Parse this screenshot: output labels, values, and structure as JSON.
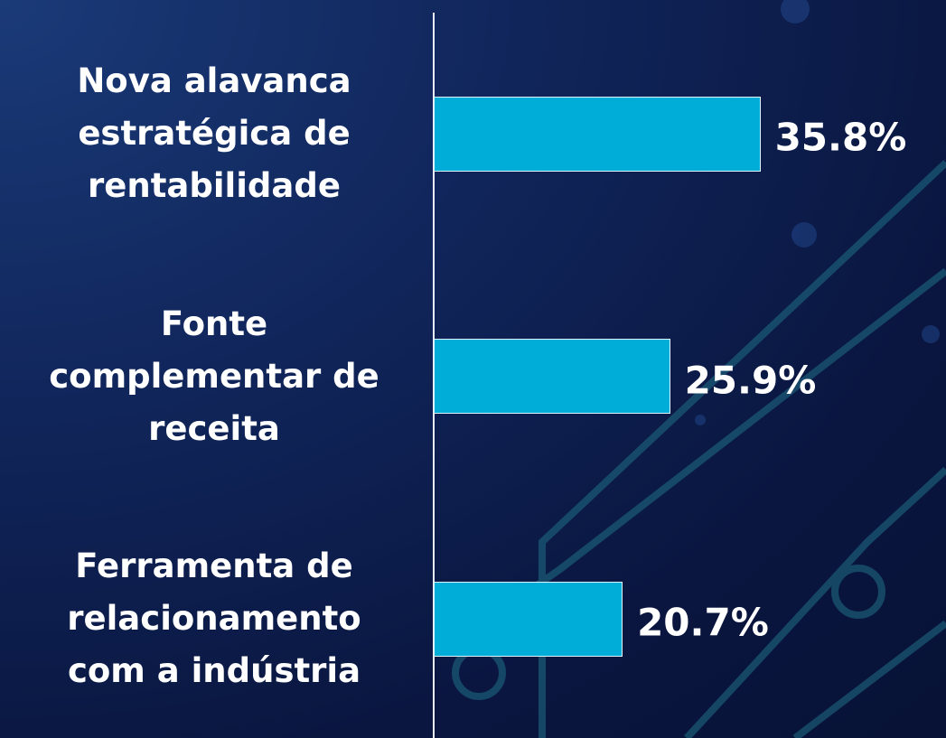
{
  "chart_data": {
    "type": "bar",
    "orientation": "horizontal",
    "categories": [
      "Nova alavanca estratégica de rentabilidade",
      "Fonte complementar de receita",
      "Ferramenta de relacionamento com a indústria"
    ],
    "values": [
      35.8,
      25.9,
      20.7
    ],
    "value_labels": [
      "35.8%",
      "25.9%",
      "20.7%"
    ],
    "color": "#00acd8"
  }
}
